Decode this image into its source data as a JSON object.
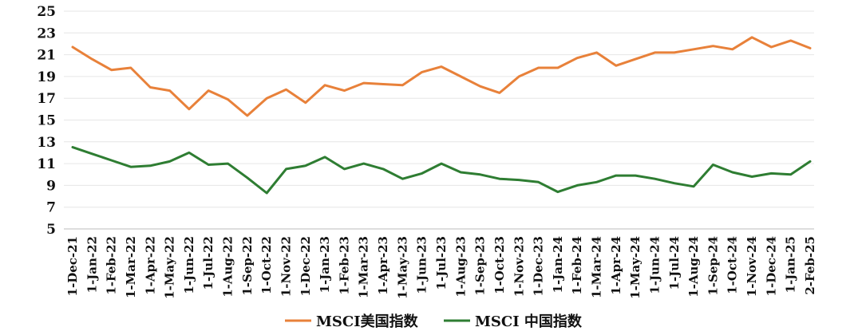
{
  "chart_data": {
    "type": "line",
    "title": "",
    "xlabel": "",
    "ylabel": "",
    "ylim": [
      5,
      25
    ],
    "yticks": [
      5,
      7,
      9,
      11,
      13,
      15,
      17,
      19,
      21,
      23,
      25
    ],
    "grid": true,
    "legend": "bottom-center",
    "x": [
      "1-Dec-21",
      "1-Jan-22",
      "1-Feb-22",
      "1-Mar-22",
      "1-Apr-22",
      "1-May-22",
      "1-Jun-22",
      "1-Jul-22",
      "1-Aug-22",
      "1-Sep-22",
      "1-Oct-22",
      "1-Nov-22",
      "1-Dec-22",
      "1-Jan-23",
      "1-Feb-23",
      "1-Mar-23",
      "1-Apr-23",
      "1-May-23",
      "1-Jun-23",
      "1-Jul-23",
      "1-Aug-23",
      "1-Sep-23",
      "1-Oct-23",
      "1-Nov-23",
      "1-Dec-23",
      "1-Jan-24",
      "1-Feb-24",
      "1-Mar-24",
      "1-Apr-24",
      "1-May-24",
      "1-Jun-24",
      "1-Jul-24",
      "1-Aug-24",
      "1-Sep-24",
      "1-Oct-24",
      "1-Nov-24",
      "1-Dec-24",
      "1-Jan-25",
      "2-Feb-25"
    ],
    "series": [
      {
        "name": "MSCI美国指数",
        "color": "#E8813A",
        "values": [
          21.7,
          20.6,
          19.6,
          19.8,
          18.0,
          17.7,
          16.0,
          17.7,
          16.9,
          15.4,
          17.0,
          17.8,
          16.6,
          18.2,
          17.7,
          18.4,
          18.3,
          18.2,
          19.4,
          19.9,
          19.0,
          18.1,
          17.5,
          19.0,
          19.8,
          19.8,
          20.7,
          21.2,
          20.0,
          20.6,
          21.2,
          21.2,
          21.5,
          21.8,
          21.5,
          22.6,
          21.7,
          22.3,
          21.6
        ]
      },
      {
        "name": "MSCI 中国指数",
        "color": "#2E7D32",
        "values": [
          12.5,
          11.9,
          11.3,
          10.7,
          10.8,
          11.2,
          12.0,
          10.9,
          11.0,
          9.7,
          8.3,
          10.5,
          10.8,
          11.6,
          10.5,
          11.0,
          10.5,
          9.6,
          10.1,
          11.0,
          10.2,
          10.0,
          9.6,
          9.5,
          9.3,
          8.4,
          9.0,
          9.3,
          9.9,
          9.9,
          9.6,
          9.2,
          8.9,
          10.9,
          10.2,
          9.8,
          10.1,
          10.0,
          11.2
        ]
      }
    ]
  }
}
